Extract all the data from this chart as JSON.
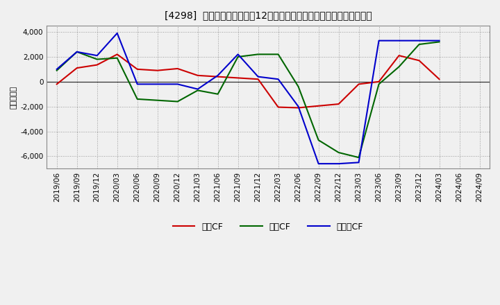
{
  "title": "[4298]  キャッシュフローの12か月移動合計の対前年同期増減額の推移",
  "ylabel": "（百万円）",
  "background_color": "#f0f0f0",
  "plot_bg_color": "#f0f0f0",
  "grid_color": "#999999",
  "ylim": [
    -7000,
    4500
  ],
  "yticks": [
    -6000,
    -4000,
    -2000,
    0,
    2000,
    4000
  ],
  "x_labels": [
    "2019/06",
    "2019/09",
    "2019/12",
    "2020/03",
    "2020/06",
    "2020/09",
    "2020/12",
    "2021/03",
    "2021/06",
    "2021/09",
    "2021/12",
    "2022/03",
    "2022/06",
    "2022/09",
    "2022/12",
    "2023/03",
    "2023/06",
    "2023/09",
    "2023/12",
    "2024/03",
    "2024/06",
    "2024/09"
  ],
  "legend_labels": [
    "営業CF",
    "投資CF",
    "フリーCF"
  ],
  "series": {
    "営業CF": {
      "color": "#cc0000",
      "values": [
        -200,
        1100,
        1350,
        2200,
        1000,
        900,
        1050,
        500,
        400,
        300,
        200,
        -2050,
        -2100,
        -1950,
        -1800,
        -200,
        0,
        2100,
        1700,
        200,
        null,
        null
      ]
    },
    "投資CF": {
      "color": "#006600",
      "values": [
        900,
        2400,
        1800,
        1900,
        -1400,
        -1500,
        -1600,
        -700,
        -1000,
        2000,
        2200,
        2200,
        -400,
        -4700,
        -5700,
        -6100,
        -200,
        1200,
        3000,
        3200,
        null,
        null
      ]
    },
    "フリーCF": {
      "color": "#0000cc",
      "values": [
        1000,
        2400,
        2100,
        3900,
        -200,
        -200,
        -200,
        -600,
        500,
        2200,
        400,
        200,
        -2000,
        -6600,
        -6600,
        -6500,
        3300,
        3300,
        3300,
        3300,
        null,
        null
      ]
    }
  }
}
